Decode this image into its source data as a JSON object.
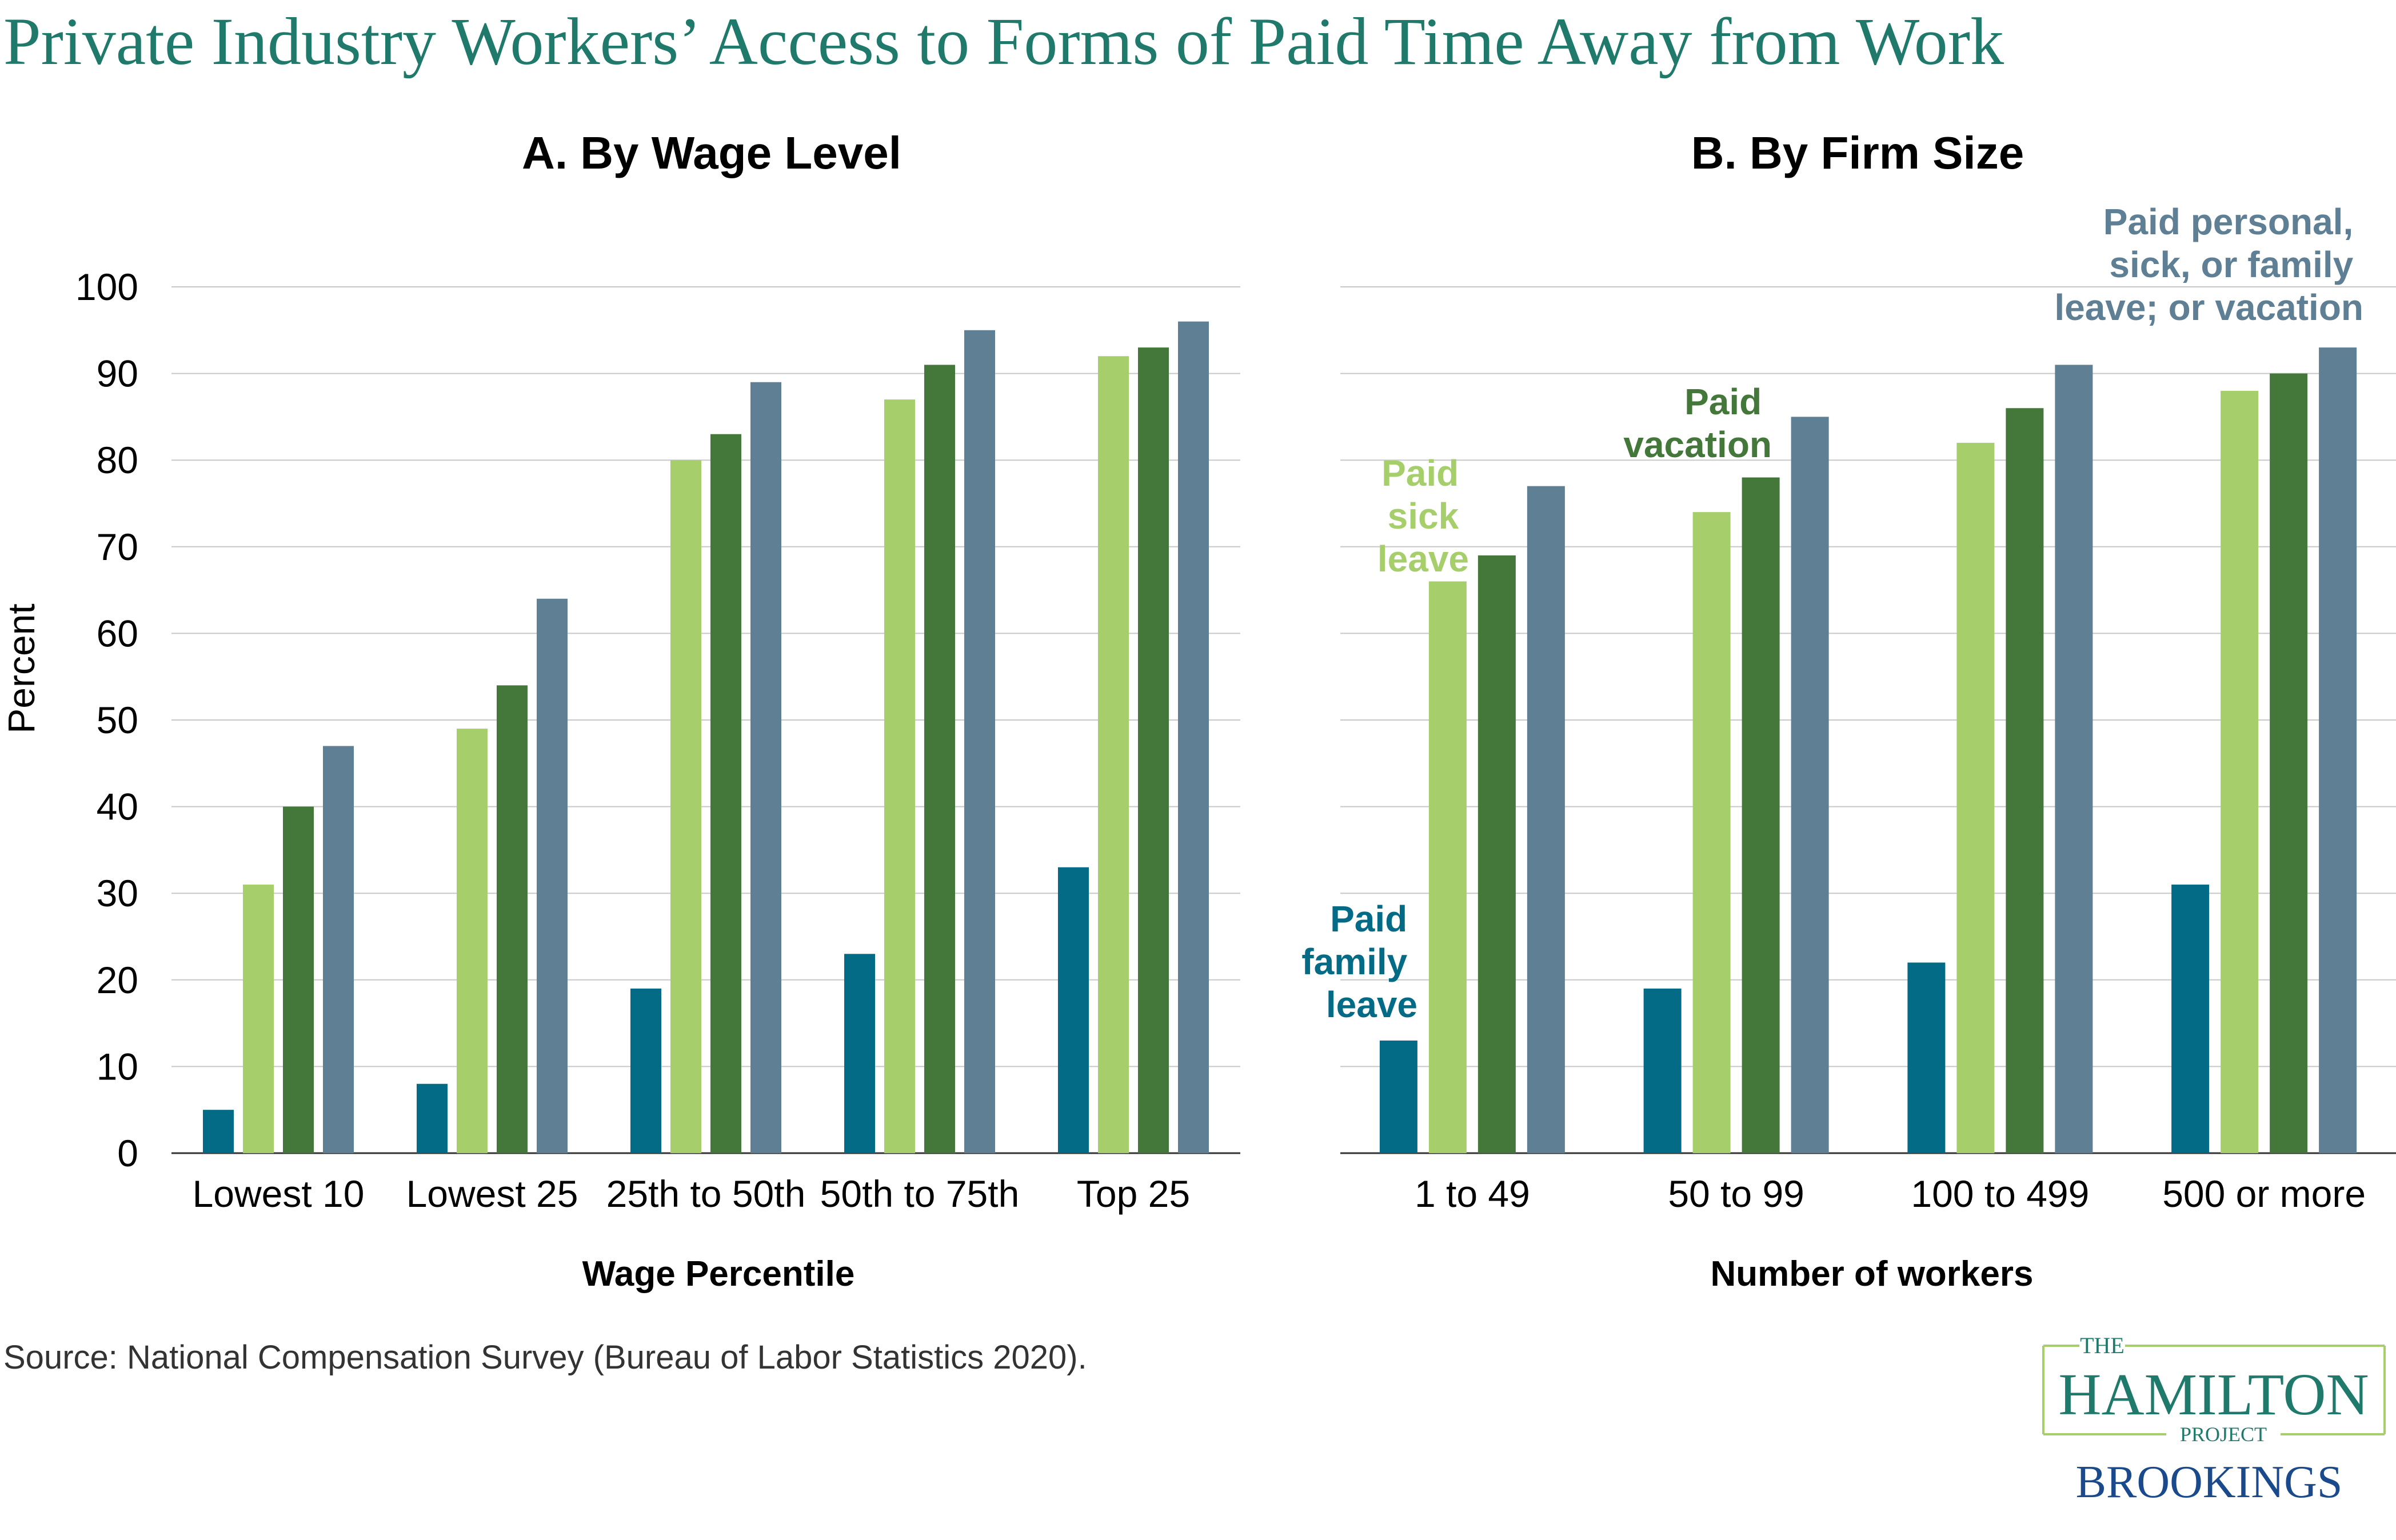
{
  "title": "Private Industry Workers’ Access to Forms of Paid Time Away from Work",
  "source": "Source:  National Compensation Survey (Bureau of Labor Statistics 2020).",
  "colors": {
    "title": "#1f7a6c",
    "paid_family_leave": "#046b87",
    "paid_sick_leave": "#a6cf6b",
    "paid_vacation": "#44773a",
    "paid_any": "#5e7f94"
  },
  "logo": {
    "the": "THE",
    "name": "HAMILTON",
    "project": "PROJECT",
    "org": "BROOKINGS"
  },
  "chart_data": [
    {
      "type": "bar",
      "title": "A. By Wage Level",
      "xlabel": "Wage Percentile",
      "ylabel": "Percent",
      "ylim": [
        0,
        100
      ],
      "yticks": [
        "0",
        "10",
        "20",
        "30",
        "40",
        "50",
        "60",
        "70",
        "80",
        "90",
        "100"
      ],
      "grid": true,
      "categories": [
        "Lowest 10",
        "Lowest 25",
        "25th to 50th",
        "50th to 75th",
        "Top 25"
      ],
      "series": [
        {
          "name": "Paid family leave",
          "color_key": "paid_family_leave",
          "values": [
            5,
            8,
            19,
            23,
            33
          ]
        },
        {
          "name": "Paid sick leave",
          "color_key": "paid_sick_leave",
          "values": [
            31,
            49,
            80,
            87,
            92
          ]
        },
        {
          "name": "Paid vacation",
          "color_key": "paid_vacation",
          "values": [
            40,
            54,
            83,
            91,
            93
          ]
        },
        {
          "name": "Paid personal, sick, or family leave; or vacation",
          "color_key": "paid_any",
          "values": [
            47,
            64,
            89,
            95,
            96
          ]
        }
      ]
    },
    {
      "type": "bar",
      "title": "B. By Firm Size",
      "xlabel": "Number of workers",
      "ylim": [
        0,
        100
      ],
      "grid": true,
      "categories": [
        "1 to 49",
        "50 to 99",
        "100 to 499",
        "500 or more"
      ],
      "series": [
        {
          "name": "Paid family leave",
          "color_key": "paid_family_leave",
          "values": [
            13,
            19,
            22,
            31
          ]
        },
        {
          "name": "Paid sick leave",
          "color_key": "paid_sick_leave",
          "values": [
            66,
            74,
            82,
            88
          ]
        },
        {
          "name": "Paid vacation",
          "color_key": "paid_vacation",
          "values": [
            69,
            78,
            86,
            90
          ]
        },
        {
          "name": "Paid personal, sick, or family leave; or vacation",
          "color_key": "paid_any",
          "values": [
            77,
            85,
            91,
            93
          ]
        }
      ],
      "annotations": [
        {
          "lines": [
            "Paid",
            "family",
            "leave"
          ],
          "color_key": "paid_family_leave"
        },
        {
          "lines": [
            "Paid",
            "sick",
            "leave"
          ],
          "color_key": "paid_sick_leave"
        },
        {
          "lines": [
            "Paid",
            "vacation"
          ],
          "color_key": "paid_vacation"
        },
        {
          "lines": [
            "Paid personal,",
            "sick, or family",
            "leave; or vacation"
          ],
          "color_key": "paid_any"
        }
      ]
    }
  ]
}
